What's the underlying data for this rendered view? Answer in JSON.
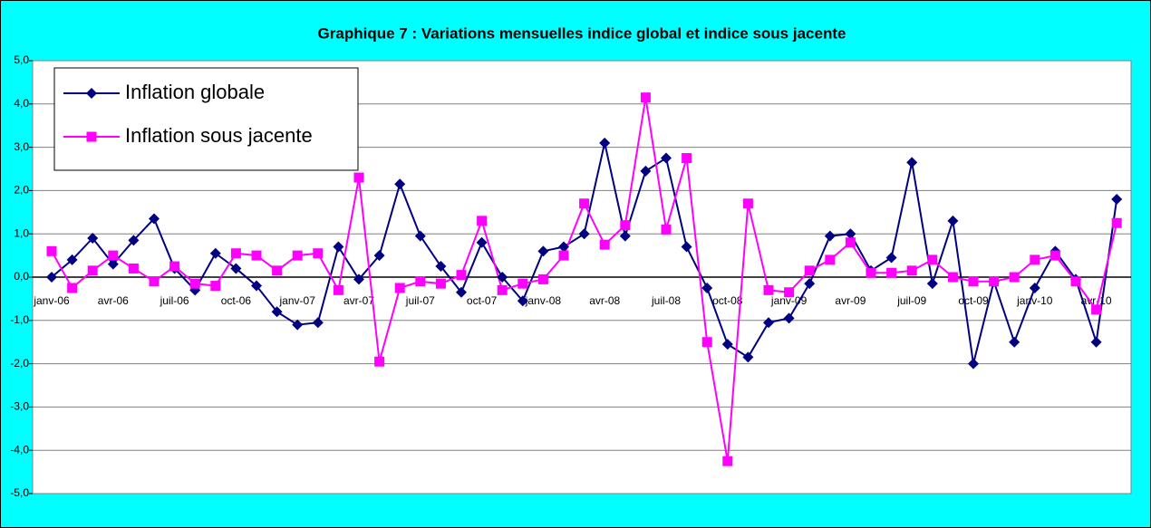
{
  "chart_data": {
    "type": "line",
    "title": "Graphique 7 : Variations mensuelles indice global et indice sous jacente",
    "categories": [
      "janv-06",
      null,
      null,
      "avr-06",
      null,
      null,
      "juil-06",
      null,
      null,
      "oct-06",
      null,
      null,
      "janv-07",
      null,
      null,
      "avr-07",
      null,
      null,
      "juil-07",
      null,
      null,
      "oct-07",
      null,
      null,
      "janv-08",
      null,
      null,
      "avr-08",
      null,
      null,
      "juil-08",
      null,
      null,
      "oct-08",
      null,
      null,
      "janv-09",
      null,
      null,
      "avr-09",
      null,
      null,
      "juil-09",
      null,
      null,
      "oct-09",
      null,
      null,
      "janv-10",
      null,
      null,
      "avr-10",
      null
    ],
    "series": [
      {
        "name": "Inflation globale",
        "color": "#000080",
        "marker": "diamond",
        "values": [
          0.0,
          0.4,
          0.9,
          0.3,
          0.85,
          1.35,
          0.2,
          -0.3,
          0.55,
          0.2,
          -0.2,
          -0.8,
          -1.1,
          -1.05,
          0.7,
          -0.05,
          0.5,
          2.15,
          0.95,
          0.25,
          -0.35,
          0.8,
          0.0,
          -0.55,
          0.6,
          0.7,
          1.0,
          3.1,
          0.95,
          2.45,
          2.75,
          0.7,
          -0.25,
          -1.55,
          -1.85,
          -1.05,
          -0.95,
          -0.15,
          0.95,
          1.0,
          0.15,
          0.45,
          2.65,
          -0.15,
          1.3,
          -2.0,
          -0.1,
          -1.5,
          -0.25,
          0.6,
          -0.05,
          -1.5,
          1.8
        ]
      },
      {
        "name": "Inflation sous jacente",
        "color": "#ff00ff",
        "marker": "square",
        "values": [
          0.6,
          -0.25,
          0.15,
          0.5,
          0.2,
          -0.1,
          0.25,
          -0.15,
          -0.2,
          0.55,
          0.5,
          0.15,
          0.5,
          0.55,
          -0.3,
          2.3,
          -1.95,
          -0.25,
          -0.1,
          -0.15,
          0.05,
          1.3,
          -0.3,
          -0.15,
          -0.05,
          0.5,
          1.7,
          0.75,
          1.2,
          4.15,
          1.1,
          2.75,
          -1.5,
          -4.25,
          1.7,
          -0.3,
          -0.35,
          0.15,
          0.4,
          0.8,
          0.1,
          0.1,
          0.15,
          0.4,
          0.0,
          -0.1,
          -0.1,
          0.0,
          0.4,
          0.5,
          -0.1,
          -0.75,
          1.25
        ]
      }
    ],
    "ylim": [
      -5,
      5
    ],
    "yticks": [
      {
        "value": -5,
        "label": "-5,0"
      },
      {
        "value": -4,
        "label": "-4,0"
      },
      {
        "value": -3,
        "label": "-3,0"
      },
      {
        "value": -2,
        "label": "-2,0"
      },
      {
        "value": -1,
        "label": "-1,0"
      },
      {
        "value": 0,
        "label": "0,0"
      },
      {
        "value": 1,
        "label": "1,0"
      },
      {
        "value": 2,
        "label": "2,0"
      },
      {
        "value": 3,
        "label": "3,0"
      },
      {
        "value": 4,
        "label": "4,0"
      },
      {
        "value": 5,
        "label": "5,0"
      }
    ],
    "grid": true,
    "legend": "top-left"
  }
}
